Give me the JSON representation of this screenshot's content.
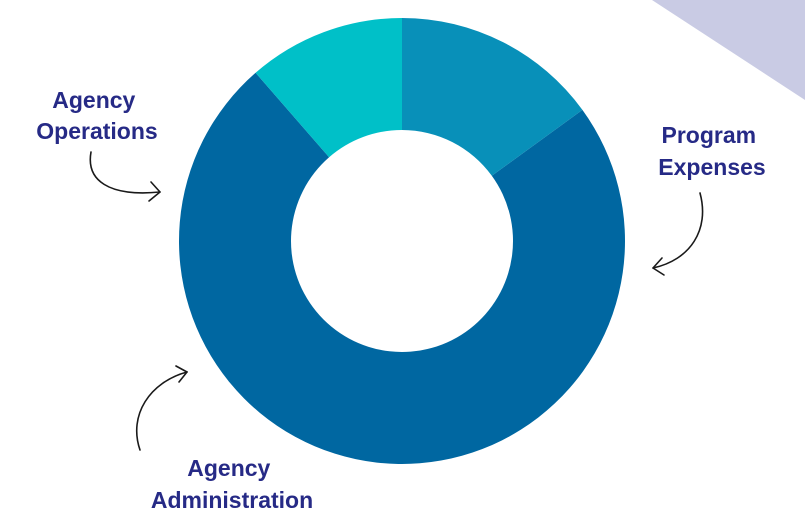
{
  "colors": {
    "background": "#ffffff",
    "corner_shape": "#c9cbe4",
    "label_text": "#262a86",
    "arrow_stroke": "#1a1a1a"
  },
  "chart_data": {
    "type": "pie",
    "style": "donut",
    "title": "",
    "legend": "none",
    "grid": false,
    "slices": [
      {
        "label": "Program Expenses",
        "label_lines": [
          "Program",
          "Expenses"
        ],
        "value": 0.736,
        "color": "#0067a1"
      },
      {
        "label": "Agency Administration",
        "label_lines": [
          "Agency",
          "Administration"
        ],
        "value": 0.114,
        "color": "#00c0c8"
      },
      {
        "label": "Agency Operations",
        "label_lines": [
          "Agency",
          "Operations"
        ],
        "value": 0.15,
        "color": "#0890b9"
      }
    ]
  }
}
